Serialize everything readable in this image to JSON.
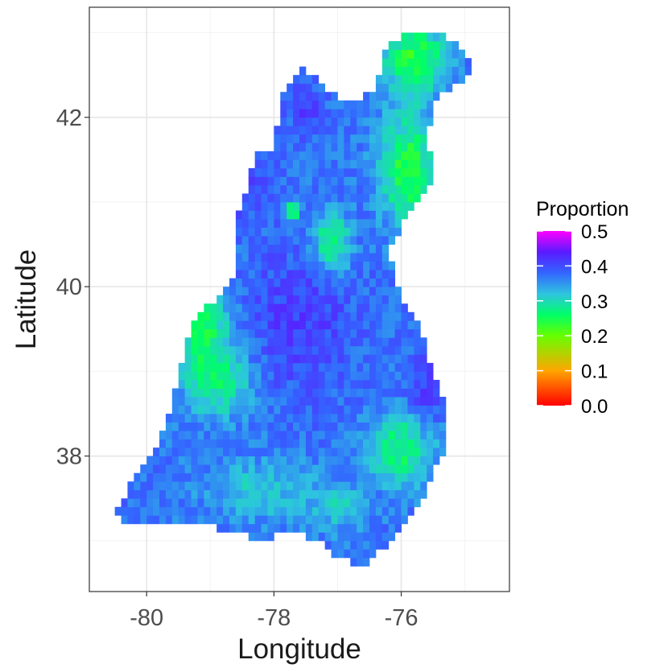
{
  "chart_data": {
    "type": "heatmap",
    "title": "",
    "xlabel": "Longitude",
    "ylabel": "Latitude",
    "xlim": [
      -80.9,
      -74.3
    ],
    "ylim": [
      36.4,
      43.3
    ],
    "x_ticks": [
      -80,
      -78,
      -76
    ],
    "x_tick_labels": [
      "-80",
      "-78",
      "-76"
    ],
    "y_ticks": [
      38,
      40,
      42
    ],
    "y_tick_labels": [
      "38",
      "40",
      "42"
    ],
    "grid": true,
    "cell_size_deg": 0.1,
    "legend": {
      "title": "Proportion",
      "placement": "right",
      "range": [
        0.0,
        0.5
      ],
      "labels": [
        "0.5",
        "0.4",
        "0.3",
        "0.2",
        "0.1",
        "0.0"
      ],
      "colors": [
        "#ff0000",
        "#ffa500",
        "#66ff00",
        "#00ff66",
        "#2ec4e0",
        "#3366ff",
        "#5a1aff",
        "#ff00ff"
      ]
    },
    "region_outline": [
      [
        -80.5,
        37.3
      ],
      [
        -80.3,
        37.6
      ],
      [
        -79.8,
        38.2
      ],
      [
        -79.6,
        38.6
      ],
      [
        -79.5,
        39.0
      ],
      [
        -79.3,
        39.6
      ],
      [
        -79.0,
        39.8
      ],
      [
        -78.6,
        40.2
      ],
      [
        -78.6,
        40.8
      ],
      [
        -78.4,
        41.2
      ],
      [
        -78.3,
        41.6
      ],
      [
        -78.0,
        41.6
      ],
      [
        -77.9,
        42.2
      ],
      [
        -77.6,
        42.6
      ],
      [
        -77.1,
        42.3
      ],
      [
        -76.8,
        42.2
      ],
      [
        -76.4,
        42.3
      ],
      [
        -76.3,
        42.8
      ],
      [
        -75.9,
        43.0
      ],
      [
        -75.3,
        42.95
      ],
      [
        -74.9,
        42.7
      ],
      [
        -75.0,
        42.4
      ],
      [
        -75.4,
        42.3
      ],
      [
        -75.6,
        41.8
      ],
      [
        -75.5,
        41.3
      ],
      [
        -75.8,
        41.0
      ],
      [
        -76.0,
        40.7
      ],
      [
        -76.2,
        40.4
      ],
      [
        -76.0,
        39.9
      ],
      [
        -75.7,
        39.5
      ],
      [
        -75.5,
        39.0
      ],
      [
        -75.3,
        38.6
      ],
      [
        -75.3,
        38.1
      ],
      [
        -75.5,
        37.9
      ],
      [
        -75.6,
        37.6
      ],
      [
        -76.0,
        37.1
      ],
      [
        -76.3,
        36.9
      ],
      [
        -76.6,
        36.7
      ],
      [
        -77.0,
        36.8
      ],
      [
        -77.3,
        37.0
      ],
      [
        -77.8,
        37.1
      ],
      [
        -78.2,
        37.0
      ],
      [
        -78.7,
        37.1
      ],
      [
        -79.2,
        37.2
      ],
      [
        -79.6,
        37.2
      ],
      [
        -80.0,
        37.2
      ],
      [
        -80.4,
        37.2
      ]
    ],
    "value_field": {
      "base": 0.37,
      "features": [
        {
          "lon": -75.8,
          "lat": 42.7,
          "sx": 0.35,
          "sy": 0.3,
          "value": 0.22,
          "weight": 0.9
        },
        {
          "lon": -75.9,
          "lat": 41.4,
          "sx": 0.3,
          "sy": 0.45,
          "value": 0.22,
          "weight": 0.9
        },
        {
          "lon": -77.1,
          "lat": 40.5,
          "sx": 0.2,
          "sy": 0.25,
          "value": 0.22,
          "weight": 0.9
        },
        {
          "lon": -77.7,
          "lat": 40.9,
          "sx": 0.08,
          "sy": 0.08,
          "value": 0.22,
          "weight": 0.9
        },
        {
          "lon": -79.1,
          "lat": 39.4,
          "sx": 0.3,
          "sy": 0.4,
          "value": 0.23,
          "weight": 0.9
        },
        {
          "lon": -78.8,
          "lat": 38.9,
          "sx": 0.35,
          "sy": 0.3,
          "value": 0.25,
          "weight": 0.8
        },
        {
          "lon": -76.0,
          "lat": 38.1,
          "sx": 0.35,
          "sy": 0.3,
          "value": 0.24,
          "weight": 0.85
        },
        {
          "lon": -78.2,
          "lat": 37.6,
          "sx": 0.6,
          "sy": 0.25,
          "value": 0.29,
          "weight": 0.7
        },
        {
          "lon": -77.0,
          "lat": 37.4,
          "sx": 0.3,
          "sy": 0.2,
          "value": 0.28,
          "weight": 0.6
        },
        {
          "lon": -77.6,
          "lat": 39.6,
          "sx": 0.6,
          "sy": 0.6,
          "value": 0.43,
          "weight": 0.7
        },
        {
          "lon": -78.7,
          "lat": 41.3,
          "sx": 0.4,
          "sy": 0.3,
          "value": 0.44,
          "weight": 0.7
        },
        {
          "lon": -75.6,
          "lat": 38.8,
          "sx": 0.25,
          "sy": 0.3,
          "value": 0.44,
          "weight": 0.6
        },
        {
          "lon": -77.5,
          "lat": 42.1,
          "sx": 0.2,
          "sy": 0.25,
          "value": 0.43,
          "weight": 0.6
        }
      ]
    }
  }
}
